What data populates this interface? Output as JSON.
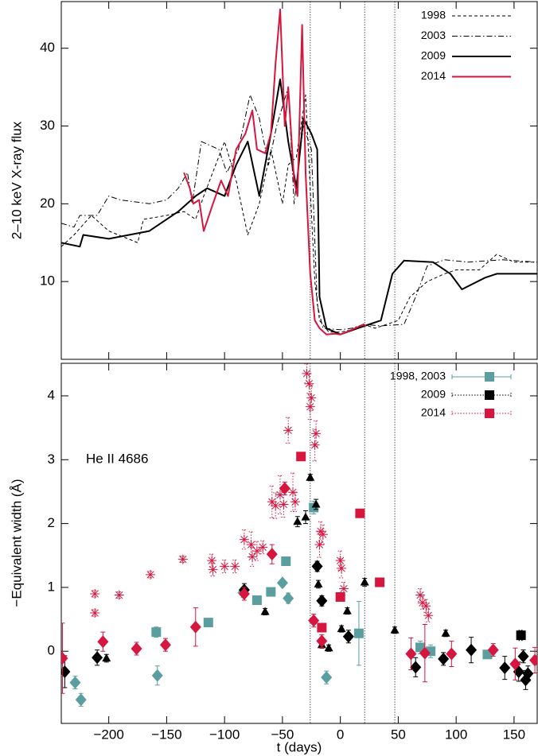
{
  "chart_data": [
    {
      "type": "line",
      "ylabel": "2–10 keV X-ray flux",
      "xlim": [
        -241,
        170
      ],
      "xticks": [
        -200,
        -150,
        -100,
        -50,
        0,
        50,
        100,
        150
      ],
      "ylim": [
        0,
        46
      ],
      "yticks": [
        10,
        20,
        30,
        40
      ],
      "vlines": [
        -26,
        21,
        47
      ],
      "legend": "upper right",
      "series": [
        {
          "name": "1998",
          "color": "#000000",
          "dash": "dashed",
          "width": 1,
          "x": [
            -241,
            -230,
            -215,
            -200,
            -175,
            -170,
            -150,
            -135,
            -125,
            -118,
            -100,
            -90,
            -80,
            -70,
            -60,
            -50,
            -45,
            -38,
            -30,
            -22,
            -18,
            -10,
            0,
            10,
            20,
            30,
            50,
            60,
            75,
            90,
            100,
            120,
            135,
            150,
            170
          ],
          "values": [
            14.5,
            16,
            18.5,
            16.5,
            15,
            18,
            18.5,
            19,
            18,
            21,
            28,
            23,
            16,
            20,
            27,
            20,
            25,
            26,
            34,
            10,
            5,
            3.5,
            3.5,
            3.8,
            4.5,
            4,
            5,
            8,
            10,
            11,
            11.5,
            11.5,
            13.5,
            12.5,
            12.5
          ]
        },
        {
          "name": "2003",
          "color": "#000000",
          "dash": "dashdot",
          "width": 1,
          "x": [
            -241,
            -230,
            -225,
            -210,
            -200,
            -190,
            -165,
            -150,
            -140,
            -132,
            -128,
            -120,
            -105,
            -98,
            -88,
            -78,
            -70,
            -62,
            -55,
            -45,
            -40,
            -32,
            -25,
            -20,
            -15,
            0,
            10,
            20,
            35,
            55,
            65,
            75,
            90,
            110,
            140,
            170
          ],
          "values": [
            17.5,
            17,
            18.5,
            18.5,
            21,
            20.5,
            20,
            20.5,
            22,
            24,
            20,
            28,
            27,
            24,
            27,
            34,
            31,
            25,
            30,
            35,
            20,
            30,
            27,
            7,
            4,
            3.8,
            4,
            4.5,
            4.3,
            4.5,
            8,
            12,
            12.8,
            12.5,
            12.8,
            12.5
          ]
        },
        {
          "name": "2009",
          "color": "#000000",
          "dash": "solid",
          "width": 2,
          "x": [
            -241,
            -225,
            -222,
            -200,
            -165,
            -140,
            -125,
            -115,
            -100,
            -90,
            -80,
            -70,
            -60,
            -52,
            -45,
            -38,
            -32,
            -25,
            -20,
            -18,
            -12,
            0,
            15,
            25,
            35,
            45,
            55,
            80,
            95,
            105,
            125,
            135,
            170
          ],
          "values": [
            15,
            14.5,
            16,
            15.5,
            16.5,
            19,
            21,
            22,
            21,
            25,
            28,
            21,
            29,
            36,
            28,
            22,
            31,
            29,
            27,
            8,
            4,
            3.2,
            4,
            4.5,
            5,
            11,
            12.7,
            12.5,
            11,
            9,
            10.5,
            11,
            11
          ]
        },
        {
          "name": "2014",
          "color": "#d6163f",
          "dash": "solid",
          "width": 2,
          "x": [
            -135,
            -130,
            -127,
            -122,
            -118,
            -110,
            -103,
            -97,
            -90,
            -82,
            -76,
            -72,
            -65,
            -60,
            -56,
            -52,
            -48,
            -45,
            -40,
            -37,
            -33,
            -30,
            -26,
            -22,
            -18,
            -12,
            -5,
            0,
            10,
            20,
            22
          ],
          "values": [
            24,
            22,
            20,
            20.5,
            16.5,
            20,
            23,
            21,
            27,
            29,
            32,
            27,
            26.5,
            29,
            38,
            45,
            30,
            35,
            23,
            21,
            43,
            24,
            11,
            5,
            4,
            3.2,
            3.3,
            3.2,
            3.8,
            4.5,
            4.3
          ]
        }
      ]
    },
    {
      "type": "scatter",
      "xlabel": "t (days)",
      "ylabel": "−Equivalent width (Å)",
      "annotation": "He II 4686",
      "xlim": [
        -241,
        170
      ],
      "xticks": [
        {
          "value": -200,
          "label": "−200"
        },
        {
          "value": -150,
          "label": "−150"
        },
        {
          "value": -100,
          "label": "−100"
        },
        {
          "value": -50,
          "label": "−50"
        },
        0,
        50,
        100,
        150
      ],
      "ylim": [
        -1.13,
        4.51
      ],
      "yticks": [
        0,
        1,
        2,
        3,
        4
      ],
      "vlines": [
        -26,
        21,
        47
      ],
      "legend": "upper right",
      "series": [
        {
          "name": "1998, 2003",
          "color": "#5b9ea0",
          "errordash": "solid",
          "legend_marker": "square",
          "groups": [
            {
              "marker": "square",
              "x": [
                -159,
                -114,
                -72,
                -60,
                -47,
                -23,
                16,
                69,
                78,
                127
              ],
              "values": [
                0.3,
                0.45,
                0.8,
                0.93,
                1.41,
                2.25,
                0.28,
                0.06,
                0,
                -0.05
              ],
              "errors": [
                0.08,
                0.05,
                0.05,
                0.05,
                0.05,
                0.1,
                0.5,
                0.1,
                0.1,
                0.06
              ]
            },
            {
              "marker": "diamond",
              "x": [
                -229,
                -224,
                -158,
                -84,
                -50,
                -45,
                -12
              ],
              "values": [
                -0.49,
                -0.76,
                -0.38,
                0.92,
                1.07,
                0.83,
                -0.41
              ],
              "errors": [
                0.1,
                0.1,
                0.15,
                0.08,
                0.05,
                0.08,
                0.1
              ]
            }
          ]
        },
        {
          "name": "2009",
          "color": "#000000",
          "errordash": "dotted",
          "legend_marker": "square",
          "groups": [
            {
              "marker": "square",
              "x": [
                156
              ],
              "values": [
                0.25
              ],
              "errors": [
                0.08
              ]
            },
            {
              "marker": "diamond",
              "x": [
                -238,
                -210,
                -83,
                -20,
                -16,
                7,
                65,
                89,
                113,
                142,
                154,
                158,
                160,
                162
              ],
              "values": [
                -0.32,
                -0.1,
                0.96,
                1.33,
                0.79,
                0.23,
                -0.25,
                -0.12,
                0.02,
                -0.26,
                -0.32,
                -0.08,
                -0.45,
                -0.35
              ],
              "errors": [
                0.25,
                0.12,
                0.1,
                0.08,
                0.08,
                0.1,
                0.15,
                0.1,
                0.2,
                0.18,
                0.15,
                0.1,
                0.15,
                0.12
              ]
            },
            {
              "marker": "triangle",
              "x": [
                -202,
                -65,
                -37,
                -30,
                -26,
                -21,
                -19,
                -16,
                -10,
                1,
                6,
                21,
                47,
                91
              ],
              "values": [
                -0.11,
                0.62,
                2.03,
                2.1,
                2.72,
                2.3,
                1.05,
                0.1,
                0.05,
                0.35,
                0.63,
                1.08,
                0.33,
                0.28
              ],
              "errors": [
                0.06,
                0.05,
                0.08,
                0.1,
                0.05,
                0.08,
                0.06,
                0.05,
                0.05,
                0.05,
                0.05,
                0.06,
                0.05,
                0.05
              ]
            }
          ]
        },
        {
          "name": "2014",
          "color": "#d6163f",
          "errordash": "dotted",
          "legend_marker": "square",
          "groups": [
            {
              "marker": "square",
              "x": [
                -34,
                -16,
                0,
                17,
                34
              ],
              "values": [
                3.05,
                0.37,
                0.85,
                2.16,
                1.08
              ],
              "errors": [
                0.05,
                0.05,
                0.05,
                0.05,
                0.05
              ]
            },
            {
              "marker": "diamond",
              "x": [
                -240,
                -205,
                -176,
                -151,
                -125,
                -83,
                -59,
                -48,
                -23,
                -16,
                61,
                73,
                96,
                132,
                151,
                168
              ],
              "values": [
                -0.11,
                0.15,
                0.04,
                0.1,
                0.38,
                0.9,
                1.52,
                2.55,
                0.48,
                0.16,
                -0.04,
                -0.03,
                -0.04,
                0.02,
                -0.2,
                -0.14
              ],
              "errors": [
                0.55,
                0.15,
                0.1,
                0.1,
                0.3,
                0.1,
                0.15,
                0.1,
                0.1,
                0.1,
                0.25,
                0.45,
                0.2,
                0.1,
                0.25,
                0.2
              ]
            },
            {
              "marker": "asterisk",
              "x": [
                -212,
                -212,
                -191,
                -164,
                -136,
                -111,
                -110,
                -100,
                -91,
                -83,
                -77,
                -76,
                -72,
                -67,
                -59,
                -56,
                -52,
                -49,
                -45,
                -41,
                -39,
                -29,
                -27,
                -26,
                -25,
                -22,
                -21,
                -18,
                -17,
                -15,
                0,
                1,
                3,
                69,
                71,
                74,
                76
              ],
              "values": [
                0.9,
                0.6,
                0.88,
                1.2,
                1.44,
                1.42,
                1.28,
                1.33,
                1.33,
                1.75,
                1.67,
                1.48,
                1.57,
                1.63,
                2.34,
                2.28,
                2.45,
                2.3,
                3.46,
                2.49,
                2.34,
                4.35,
                4.19,
                3.83,
                3.97,
                3.23,
                3.41,
                1.67,
                1.88,
                1.83,
                1.42,
                1.3,
                0.98,
                0.88,
                0.76,
                0.71,
                0.56
              ],
              "errors": [
                0.05,
                0.05,
                0.05,
                0.05,
                0.05,
                0.1,
                0.1,
                0.1,
                0.1,
                0.15,
                0.2,
                0.15,
                0.15,
                0.1,
                0.25,
                0.2,
                0.3,
                0.2,
                0.2,
                0.3,
                0.15,
                0.15,
                0.15,
                0.2,
                0.2,
                0.25,
                0.2,
                0.2,
                0.15,
                0.15,
                0.15,
                0.15,
                0.1,
                0.1,
                0.1,
                0.1,
                0.1
              ]
            }
          ]
        }
      ]
    }
  ]
}
